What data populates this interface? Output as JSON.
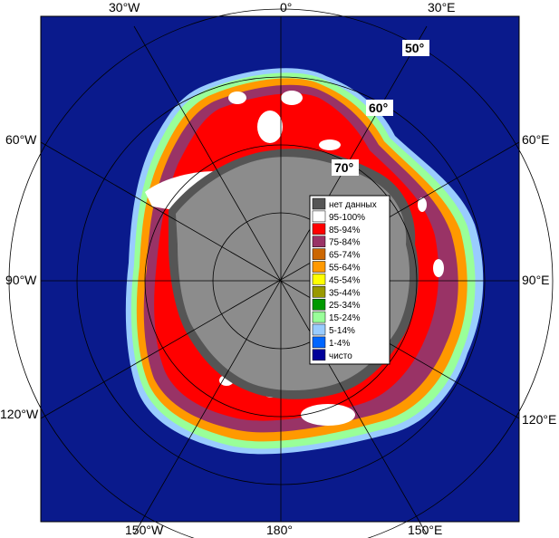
{
  "map": {
    "colors": {
      "ocean": "#0a1a8c",
      "land": "#8c8c8c",
      "nodata": "#555555",
      "grid": "#b4b4b4"
    },
    "longitude_labels": [
      {
        "id": "lon-30w",
        "text": "30°W"
      },
      {
        "id": "lon-0",
        "text": "0°"
      },
      {
        "id": "lon-30e",
        "text": "30°E"
      },
      {
        "id": "lon-60w",
        "text": "60°W"
      },
      {
        "id": "lon-60e",
        "text": "60°E"
      },
      {
        "id": "lon-90w",
        "text": "90°W"
      },
      {
        "id": "lon-90e",
        "text": "90°E"
      },
      {
        "id": "lon-120w",
        "text": "120°W"
      },
      {
        "id": "lon-120e",
        "text": "120°E"
      },
      {
        "id": "lon-150w",
        "text": "150°W"
      },
      {
        "id": "lon-180",
        "text": "180°"
      },
      {
        "id": "lon-150e",
        "text": "150°E"
      }
    ],
    "latitude_labels": [
      {
        "id": "lat-50",
        "text": "50°"
      },
      {
        "id": "lat-60",
        "text": "60°"
      },
      {
        "id": "lat-70",
        "text": "70°"
      }
    ]
  },
  "legend": {
    "items": [
      {
        "label": "нет данных",
        "color": "#555555"
      },
      {
        "label": "95-100%",
        "color": "#ffffff"
      },
      {
        "label": "85-94%",
        "color": "#ff0000"
      },
      {
        "label": "75-84%",
        "color": "#993366"
      },
      {
        "label": "65-74%",
        "color": "#cc6600"
      },
      {
        "label": "55-64%",
        "color": "#ff9900"
      },
      {
        "label": "45-54%",
        "color": "#ffff00"
      },
      {
        "label": "35-44%",
        "color": "#999900"
      },
      {
        "label": "25-34%",
        "color": "#009900"
      },
      {
        "label": "15-24%",
        "color": "#99ff99"
      },
      {
        "label": "5-14%",
        "color": "#99ccff"
      },
      {
        "label": "1-4%",
        "color": "#0066ff"
      },
      {
        "label": "чисто",
        "color": "#000099"
      }
    ]
  }
}
